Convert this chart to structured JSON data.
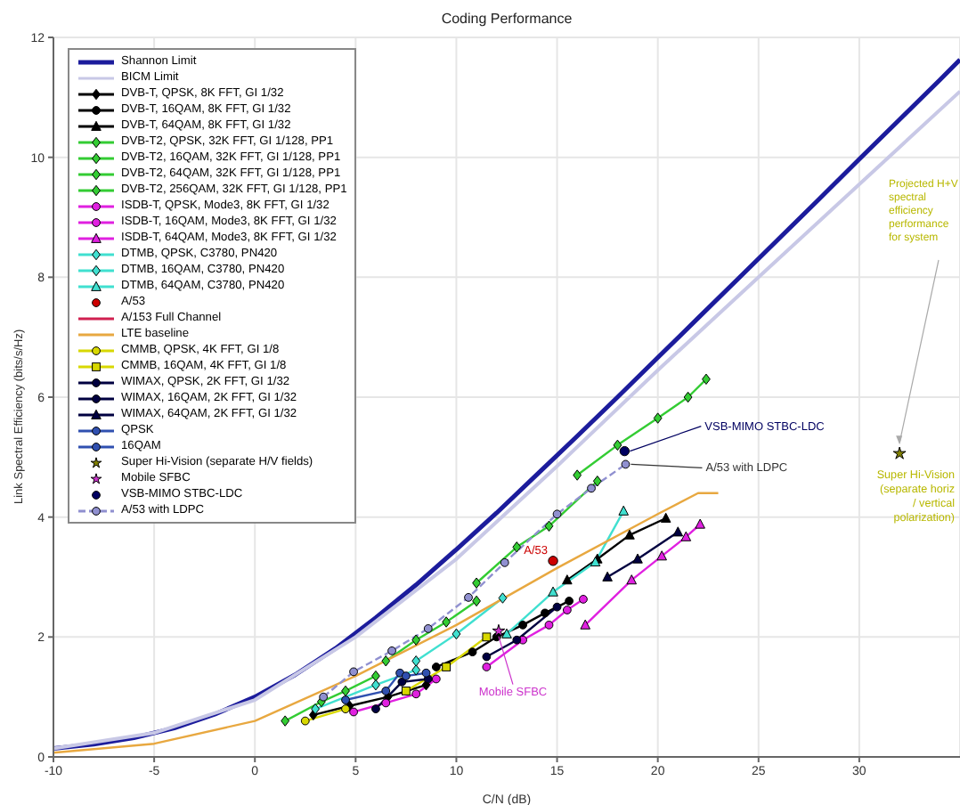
{
  "chart_data": {
    "type": "line",
    "title": "Coding Performance",
    "xlabel": "C/N (dB)",
    "ylabel": "Link Spectral Efficiency (bits/s/Hz)",
    "xlim": [
      -10,
      35
    ],
    "xticks": [
      -10,
      -5,
      0,
      5,
      10,
      15,
      20,
      25,
      30
    ],
    "ylim": [
      0,
      12
    ],
    "yticks": [
      0,
      2,
      4,
      6,
      8,
      10,
      12
    ],
    "grid": true,
    "legend": "top left",
    "series": [
      {
        "name": "Shannon Limit",
        "color": "#1c1c9c",
        "marker": "none",
        "x": [
          -10,
          -8,
          -6,
          -4,
          -2,
          0,
          2,
          4,
          6,
          8,
          10,
          12,
          14,
          16,
          18,
          20,
          22,
          24,
          26,
          28,
          30,
          32,
          34,
          35
        ],
        "values": [
          0.14,
          0.21,
          0.32,
          0.48,
          0.71,
          1,
          1.37,
          1.81,
          2.32,
          2.87,
          3.46,
          4.07,
          4.71,
          5.35,
          6.0,
          6.66,
          7.32,
          7.98,
          8.64,
          9.3,
          9.97,
          10.63,
          11.29,
          11.63
        ]
      },
      {
        "name": "BICM Limit",
        "color": "#c8c8e6",
        "marker": "none",
        "x": [
          -10,
          -5,
          0,
          5,
          10,
          15,
          20,
          25,
          30,
          35
        ],
        "values": [
          0.14,
          0.4,
          0.95,
          2.0,
          3.3,
          4.85,
          6.45,
          8.0,
          9.55,
          11.1
        ]
      },
      {
        "name": "DVB-T, QPSK, 8K FFT, GI 1/32",
        "color": "#000000",
        "marker": "diamond",
        "x": [
          2.9,
          4.7,
          6.6,
          8.5
        ],
        "values": [
          0.7,
          0.85,
          1.0,
          1.2
        ]
      },
      {
        "name": "DVB-T, 16QAM, 8K FFT, GI 1/32",
        "color": "#000000",
        "marker": "circle",
        "x": [
          9.0,
          10.8,
          12.0,
          13.3,
          14.4,
          15.6
        ],
        "values": [
          1.5,
          1.75,
          2.0,
          2.2,
          2.4,
          2.6
        ]
      },
      {
        "name": "DVB-T, 64QAM, 8K FFT, GI 1/32",
        "color": "#000000",
        "marker": "triangle",
        "x": [
          15.5,
          17.0,
          18.6,
          20.4
        ],
        "values": [
          2.95,
          3.3,
          3.7,
          3.98
        ]
      },
      {
        "name": "DVB-T2, QPSK, 32K FFT, GI 1/128, PP1",
        "color": "#33cc33",
        "marker": "diamond",
        "x": [
          1.5,
          3.3,
          4.5,
          6
        ],
        "values": [
          0.6,
          0.92,
          1.1,
          1.35
        ]
      },
      {
        "name": "DVB-T2, 16QAM, 32K FFT, GI 1/128, PP1",
        "color": "#33cc33",
        "marker": "diamond",
        "x": [
          6.5,
          8,
          9.5,
          11
        ],
        "values": [
          1.6,
          1.95,
          2.25,
          2.6
        ]
      },
      {
        "name": "DVB-T2, 64QAM, 32K FFT, GI 1/128, PP1",
        "color": "#33cc33",
        "marker": "diamond",
        "x": [
          11,
          13,
          14.6,
          17
        ],
        "values": [
          2.9,
          3.5,
          3.85,
          4.6
        ]
      },
      {
        "name": "DVB-T2, 256QAM, 32K FFT, GI 1/128, PP1",
        "color": "#33cc33",
        "marker": "diamond",
        "x": [
          16,
          18,
          20,
          21.5,
          22.4
        ],
        "values": [
          4.7,
          5.2,
          5.65,
          6.0,
          6.3
        ]
      },
      {
        "name": "ISDB-T, QPSK, Mode3, 8K FFT, GI 1/32",
        "color": "#e020e0",
        "marker": "circle",
        "x": [
          4.9,
          6.5,
          8,
          9
        ],
        "values": [
          0.75,
          0.9,
          1.05,
          1.3
        ]
      },
      {
        "name": "ISDB-T, 16QAM, Mode3, 8K FFT, GI 1/32",
        "color": "#e020e0",
        "marker": "circle",
        "x": [
          11.5,
          13.3,
          14.6,
          15.5,
          16.3
        ],
        "values": [
          1.5,
          1.95,
          2.2,
          2.45,
          2.63
        ]
      },
      {
        "name": "ISDB-T, 64QAM, Mode3, 8K FFT, GI 1/32",
        "color": "#e020e0",
        "marker": "triangle",
        "x": [
          16.4,
          18.7,
          20.2,
          21.4,
          22.1
        ],
        "values": [
          2.2,
          2.95,
          3.35,
          3.67,
          3.88
        ]
      },
      {
        "name": "DTMB, QPSK, C3780, PN420",
        "color": "#40e0d0",
        "marker": "diamond",
        "x": [
          3,
          6,
          8
        ],
        "values": [
          0.8,
          1.2,
          1.45
        ]
      },
      {
        "name": "DTMB, 16QAM, C3780, PN420",
        "color": "#40e0d0",
        "marker": "diamond",
        "x": [
          8,
          10,
          12.3
        ],
        "values": [
          1.6,
          2.05,
          2.65
        ]
      },
      {
        "name": "DTMB, 64QAM, C3780, PN420",
        "color": "#40e0d0",
        "marker": "triangle",
        "x": [
          12.5,
          14.8,
          16.9,
          18.3
        ],
        "values": [
          2.05,
          2.75,
          3.25,
          4.1
        ]
      },
      {
        "name": "A/53",
        "type": "scatter",
        "color": "#cc0000",
        "marker": "circle",
        "x": [
          14.8
        ],
        "values": [
          3.27
        ]
      },
      {
        "name": "A/153 Full Channel",
        "color": "#d02050",
        "marker": "none"
      },
      {
        "name": "LTE baseline",
        "color": "#e8a840",
        "marker": "none",
        "x": [
          -10,
          -5,
          0,
          5,
          10,
          15,
          20,
          22,
          23
        ],
        "values": [
          0.07,
          0.22,
          0.6,
          1.35,
          2.2,
          3.15,
          4.05,
          4.4,
          4.4
        ]
      },
      {
        "name": "CMMB, QPSK, 4K FFT, GI 1/8",
        "color": "#d8d800",
        "marker": "circle",
        "x": [
          2.5,
          4.5
        ],
        "values": [
          0.6,
          0.8
        ]
      },
      {
        "name": "CMMB, 16QAM, 4K FFT, GI 1/8",
        "color": "#d8d800",
        "marker": "square",
        "x": [
          7.5,
          9.5,
          11.5
        ],
        "values": [
          1.1,
          1.5,
          2.0
        ]
      },
      {
        "name": "WIMAX, QPSK, 2K FFT, GI 1/32",
        "color": "#000040",
        "marker": "circle",
        "x": [
          6.0,
          7.3,
          8.6
        ],
        "values": [
          0.8,
          1.25,
          1.3
        ]
      },
      {
        "name": "WIMAX, 16QAM, 2K FFT, GI 1/32",
        "color": "#000040",
        "marker": "circle",
        "x": [
          11.5,
          13,
          15
        ],
        "values": [
          1.67,
          1.95,
          2.5
        ]
      },
      {
        "name": "WIMAX, 64QAM, 2K FFT, GI 1/32",
        "color": "#000040",
        "marker": "triangle",
        "x": [
          17.5,
          19.0,
          21.0
        ],
        "values": [
          3.0,
          3.3,
          3.75
        ]
      },
      {
        "name": "QPSK",
        "color": "#3050b0",
        "marker": "circle",
        "x": [
          4.5,
          6.5,
          7.2
        ],
        "values": [
          0.95,
          1.1,
          1.4
        ]
      },
      {
        "name": "16QAM",
        "color": "#3050b0",
        "marker": "circle",
        "x": [
          7.5,
          8.5
        ],
        "values": [
          1.35,
          1.4
        ]
      },
      {
        "name": "Super Hi-Vision (separate H/V fields)",
        "type": "scatter",
        "color": "#808000",
        "marker": "star",
        "x": [
          32.0
        ],
        "values": [
          5.06
        ]
      },
      {
        "name": "Mobile SFBC",
        "type": "scatter",
        "color": "#cc33cc",
        "marker": "star",
        "x": [
          12.1
        ],
        "values": [
          2.1
        ]
      },
      {
        "name": "VSB-MIMO STBC-LDC",
        "type": "scatter",
        "color": "#000060",
        "marker": "circle",
        "x": [
          18.35
        ],
        "values": [
          5.1
        ]
      },
      {
        "name": "A/53 with LDPC",
        "color": "#9090d0",
        "marker": "circle",
        "line_style": "dashed",
        "x": [
          3.4,
          4.9,
          6.8,
          8.6,
          10.6,
          12.4,
          15.0,
          16.7,
          18.4
        ],
        "values": [
          1.0,
          1.42,
          1.77,
          2.14,
          2.66,
          3.24,
          4.05,
          4.48,
          4.88
        ]
      }
    ],
    "annotations": [
      {
        "text": "A/53",
        "x": 14.8,
        "y": 3.27
      },
      {
        "text": "VSB-MIMO STBC-LDC",
        "x": 18.35,
        "y": 5.1
      },
      {
        "text": "A/53 with LDPC",
        "x": 18.4,
        "y": 4.88
      },
      {
        "text": "Mobile SFBC",
        "x": 12.1,
        "y": 2.1
      },
      {
        "text": "Super Hi-Vision (separate horiz / vertical polarization)",
        "x": 32.0,
        "y": 5.06
      },
      "Projected H+V spectral efficiency performance for system"
    ]
  }
}
